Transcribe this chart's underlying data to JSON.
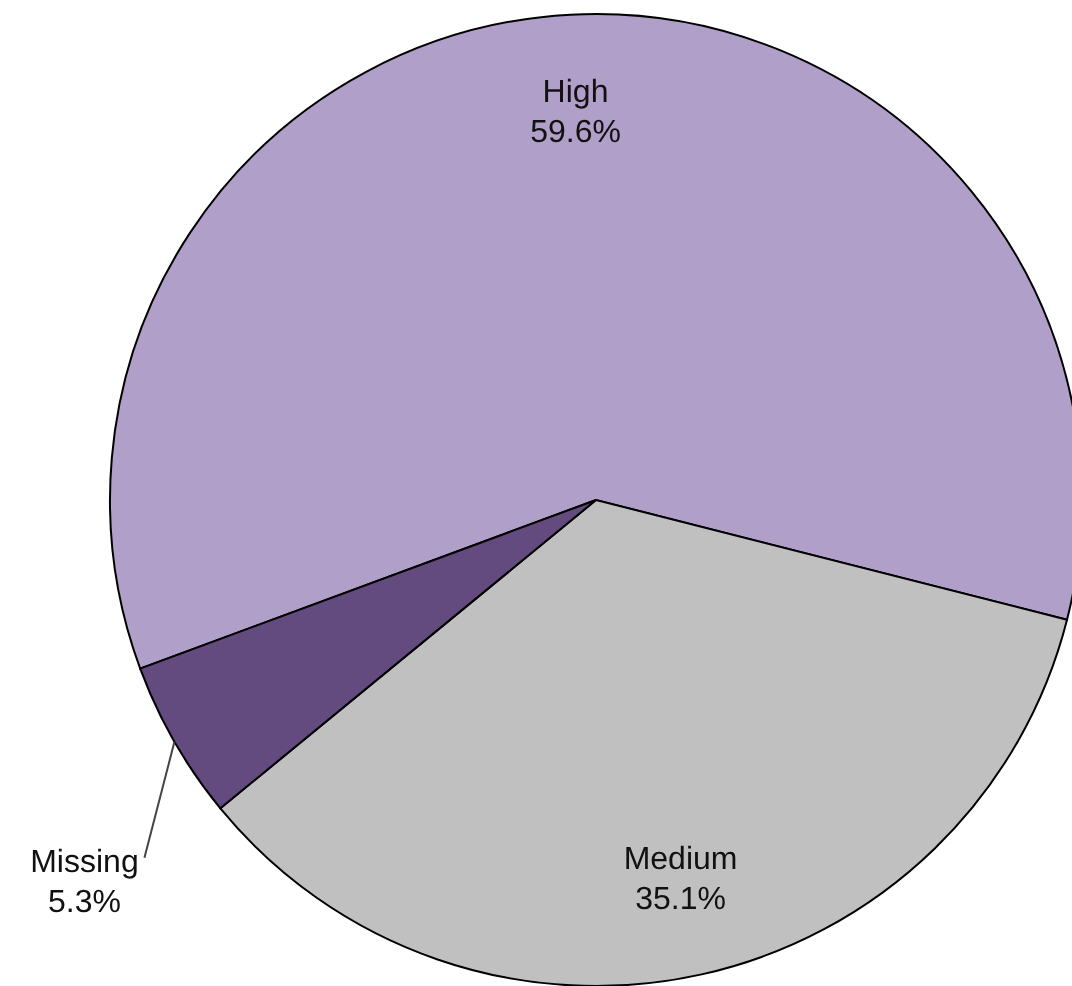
{
  "chart_data": {
    "type": "pie",
    "categories": [
      "High",
      "Medium",
      "Missing"
    ],
    "values": [
      59.6,
      35.1,
      5.3
    ],
    "colors": [
      "#b09fc8",
      "#c0c0c0",
      "#634a7f"
    ],
    "value_labels": [
      "59.6%",
      "35.1%",
      "5.3%"
    ]
  }
}
